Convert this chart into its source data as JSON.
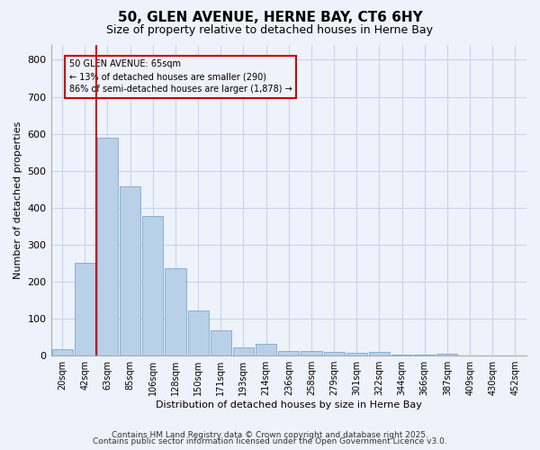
{
  "title_line1": "50, GLEN AVENUE, HERNE BAY, CT6 6HY",
  "title_line2": "Size of property relative to detached houses in Herne Bay",
  "xlabel": "Distribution of detached houses by size in Herne Bay",
  "ylabel": "Number of detached properties",
  "categories": [
    "20sqm",
    "42sqm",
    "63sqm",
    "85sqm",
    "106sqm",
    "128sqm",
    "150sqm",
    "171sqm",
    "193sqm",
    "214sqm",
    "236sqm",
    "258sqm",
    "279sqm",
    "301sqm",
    "322sqm",
    "344sqm",
    "366sqm",
    "387sqm",
    "409sqm",
    "430sqm",
    "452sqm"
  ],
  "values": [
    18,
    250,
    590,
    458,
    378,
    237,
    122,
    68,
    22,
    32,
    13,
    13,
    11,
    8,
    10,
    4,
    4,
    5,
    0,
    0,
    0
  ],
  "bar_color": "#b8d0e8",
  "bar_edge_color": "#7aaace",
  "background_color": "#eef2fa",
  "grid_color": "#c8d4ec",
  "vline_color": "#cc0000",
  "annotation_text": "50 GLEN AVENUE: 65sqm\n← 13% of detached houses are smaller (290)\n86% of semi-detached houses are larger (1,878) →",
  "annotation_box_color": "#cc0000",
  "ylim": [
    0,
    840
  ],
  "yticks": [
    0,
    100,
    200,
    300,
    400,
    500,
    600,
    700,
    800
  ],
  "footer_line1": "Contains HM Land Registry data © Crown copyright and database right 2025.",
  "footer_line2": "Contains public sector information licensed under the Open Government Licence v3.0.",
  "title_fontsize": 11,
  "subtitle_fontsize": 9,
  "axis_label_fontsize": 8,
  "tick_fontsize": 7,
  "footer_fontsize": 6.5,
  "annot_fontsize": 7
}
